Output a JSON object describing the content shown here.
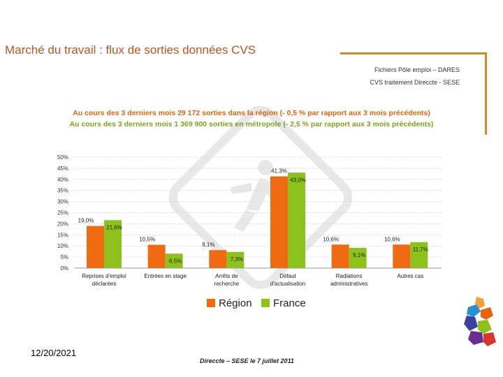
{
  "header": {
    "title": "Marché du travail : flux de sorties données CVS",
    "source_line1": "Fichiers Pôle emploi – DARES",
    "source_line2": "CVS traitement Direccte - SESE"
  },
  "notes": {
    "region": "Au cours des 3 derniers mois 29 172  sorties dans la région (- 0,5 % par rapport aux 3 mois précédents)",
    "france": "Au cours des 3 derniers mois 1 369 900  sorties en métropole (- 2,5 % par rapport aux 3 mois précédents)"
  },
  "chart_data": {
    "type": "bar",
    "categories": [
      [
        "Reprises d'emploi",
        "déclarées"
      ],
      [
        "Entrées en stage"
      ],
      [
        "Arrêts de",
        "recherche"
      ],
      [
        "Défaut",
        "d'actualisation"
      ],
      [
        "Radiations",
        "administratives"
      ],
      [
        "Autres cas"
      ]
    ],
    "series": [
      {
        "name": "Région",
        "color": "#f06a12",
        "values": [
          19.0,
          10.5,
          8.1,
          41.3,
          10.6,
          10.6
        ],
        "labels": [
          "19,0%",
          "10,5%",
          "8,1%",
          "41,3%",
          "10,6%",
          "10,6%"
        ]
      },
      {
        "name": "France",
        "color": "#8cc21a",
        "values": [
          21.6,
          6.5,
          7.3,
          43.0,
          9.1,
          11.7
        ],
        "labels": [
          "21,6%",
          "6,5%",
          "7,3%",
          "43,0%",
          "9,1%",
          "11,7%"
        ]
      }
    ],
    "ylim": [
      0,
      50
    ],
    "yticks": [
      "0%",
      "5%",
      "10%",
      "15%",
      "20%",
      "25%",
      "30%",
      "35%",
      "40%",
      "45%",
      "50%"
    ],
    "grid": true,
    "legend_position": "bottom"
  },
  "date": "12/20/2021",
  "footer": "Direccte – SESE le 7 juillet 2011"
}
